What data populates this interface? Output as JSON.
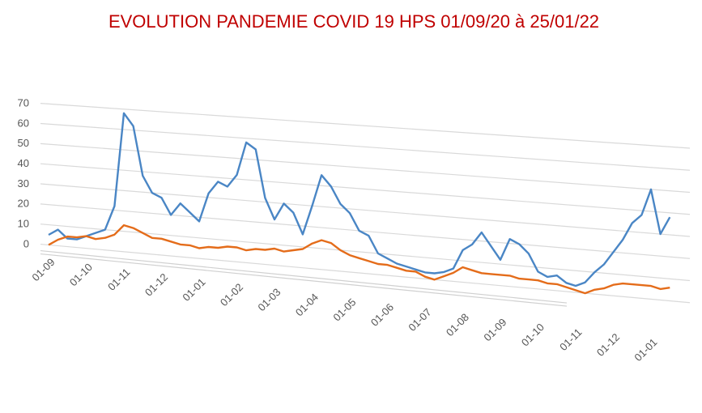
{
  "chart_data": {
    "type": "line",
    "title": "EVOLUTION PANDEMIE COVID 19 HPS 01/09/20 à 25/01/22",
    "categories": [
      "01-09",
      null,
      null,
      null,
      "01-10",
      null,
      null,
      null,
      "01-11",
      null,
      null,
      null,
      "01-12",
      null,
      null,
      null,
      "01-01",
      null,
      null,
      null,
      "01-02",
      null,
      null,
      null,
      "01-03",
      null,
      null,
      null,
      "01-04",
      null,
      null,
      null,
      "01-05",
      null,
      null,
      null,
      "01-06",
      null,
      null,
      null,
      "01-07",
      null,
      null,
      null,
      "01-08",
      null,
      null,
      null,
      "01-09",
      null,
      null,
      null,
      "01-10",
      null,
      null,
      null,
      "01-11",
      null,
      null,
      null,
      "01-12",
      null,
      null,
      null,
      "01-01",
      null,
      null
    ],
    "series": [
      {
        "color": "#4a86c5",
        "values": [
          5,
          8,
          4,
          4,
          6,
          8,
          10,
          22,
          68,
          62,
          38,
          30,
          28,
          20,
          26,
          22,
          18,
          32,
          38,
          36,
          42,
          58,
          55,
          32,
          22,
          30,
          26,
          16,
          30,
          45,
          40,
          32,
          28,
          20,
          18,
          10,
          8,
          6,
          5,
          4,
          3,
          3,
          4,
          6,
          15,
          18,
          24,
          18,
          12,
          22,
          20,
          16,
          8,
          6,
          7,
          4,
          3,
          5,
          10,
          14,
          20,
          26,
          34,
          38,
          50,
          30,
          38
        ]
      },
      {
        "color": "#e46c1a",
        "values": [
          0,
          3,
          5,
          5,
          6,
          5,
          6,
          8,
          13,
          12,
          10,
          8,
          8,
          7,
          6,
          6,
          5,
          6,
          6,
          7,
          7,
          6,
          7,
          7,
          8,
          7,
          8,
          9,
          12,
          14,
          13,
          10,
          8,
          7,
          6,
          5,
          5,
          4,
          3,
          3,
          1,
          0,
          2,
          4,
          7,
          6,
          5,
          5,
          5,
          5,
          4,
          4,
          4,
          3,
          3,
          2,
          1,
          0,
          2,
          3,
          5,
          6,
          6,
          6,
          6,
          5,
          6
        ]
      }
    ],
    "ylim": [
      0,
      70
    ],
    "yticks": [
      0,
      10,
      20,
      30,
      40,
      50,
      60,
      70
    ],
    "grid": true
  }
}
